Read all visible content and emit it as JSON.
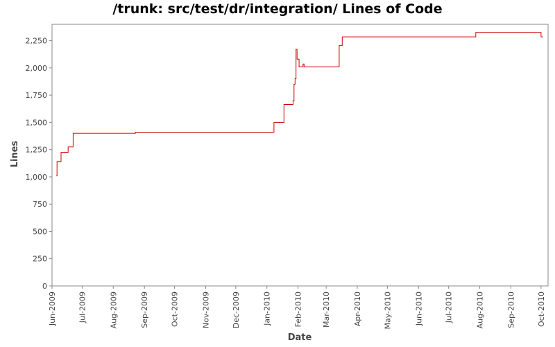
{
  "chart_data": {
    "type": "line",
    "title": "/trunk: src/test/dr/integration/ Lines of Code",
    "xlabel": "Date",
    "ylabel": "Lines",
    "xlim": [
      "2009-06-01",
      "2010-10-08"
    ],
    "ylim": [
      0,
      2400
    ],
    "y_ticks": [
      0,
      250,
      500,
      750,
      1000,
      1250,
      1500,
      1750,
      2000,
      2250
    ],
    "y_tick_labels": [
      "0",
      "250",
      "500",
      "750",
      "1,000",
      "1,250",
      "1,500",
      "1,750",
      "2,000",
      "2,250"
    ],
    "x_ticks": [
      "2009-06-01",
      "2009-07-01",
      "2009-08-01",
      "2009-09-01",
      "2009-10-01",
      "2009-11-01",
      "2009-12-01",
      "2010-01-01",
      "2010-02-01",
      "2010-03-01",
      "2010-04-01",
      "2010-05-01",
      "2010-06-01",
      "2010-07-01",
      "2010-08-01",
      "2010-09-01",
      "2010-10-01"
    ],
    "x_tick_labels": [
      "Jun-2009",
      "Jul-2009",
      "Aug-2009",
      "Sep-2009",
      "Oct-2009",
      "Nov-2009",
      "Dec-2009",
      "Jan-2010",
      "Feb-2010",
      "Mar-2010",
      "Apr-2010",
      "May-2010",
      "Jun-2010",
      "Jul-2010",
      "Aug-2010",
      "Sep-2010",
      "Oct-2010"
    ],
    "grid": false,
    "series_color": "#cc0000",
    "series": [
      {
        "x": [
          "2009-06-05",
          "2009-06-06",
          "2009-06-08",
          "2009-06-10",
          "2009-06-14",
          "2009-06-17",
          "2009-06-20",
          "2009-06-22",
          "2009-06-24",
          "2009-08-22",
          "2009-08-23",
          "2010-01-08",
          "2010-01-18",
          "2010-01-27",
          "2010-01-28",
          "2010-01-29",
          "2010-01-30",
          "2010-01-31",
          "2010-02-02",
          "2010-02-05",
          "2010-02-06",
          "2010-02-07",
          "2010-03-14",
          "2010-03-17",
          "2010-07-28",
          "2010-10-01",
          "2010-10-03"
        ],
        "y": [
          1010,
          1140,
          1140,
          1225,
          1225,
          1275,
          1275,
          1400,
          1400,
          1400,
          1410,
          1500,
          1665,
          1700,
          1850,
          1900,
          2170,
          2080,
          2010,
          2010,
          2035,
          2010,
          2205,
          2285,
          2325,
          2285,
          2285
        ]
      }
    ]
  }
}
